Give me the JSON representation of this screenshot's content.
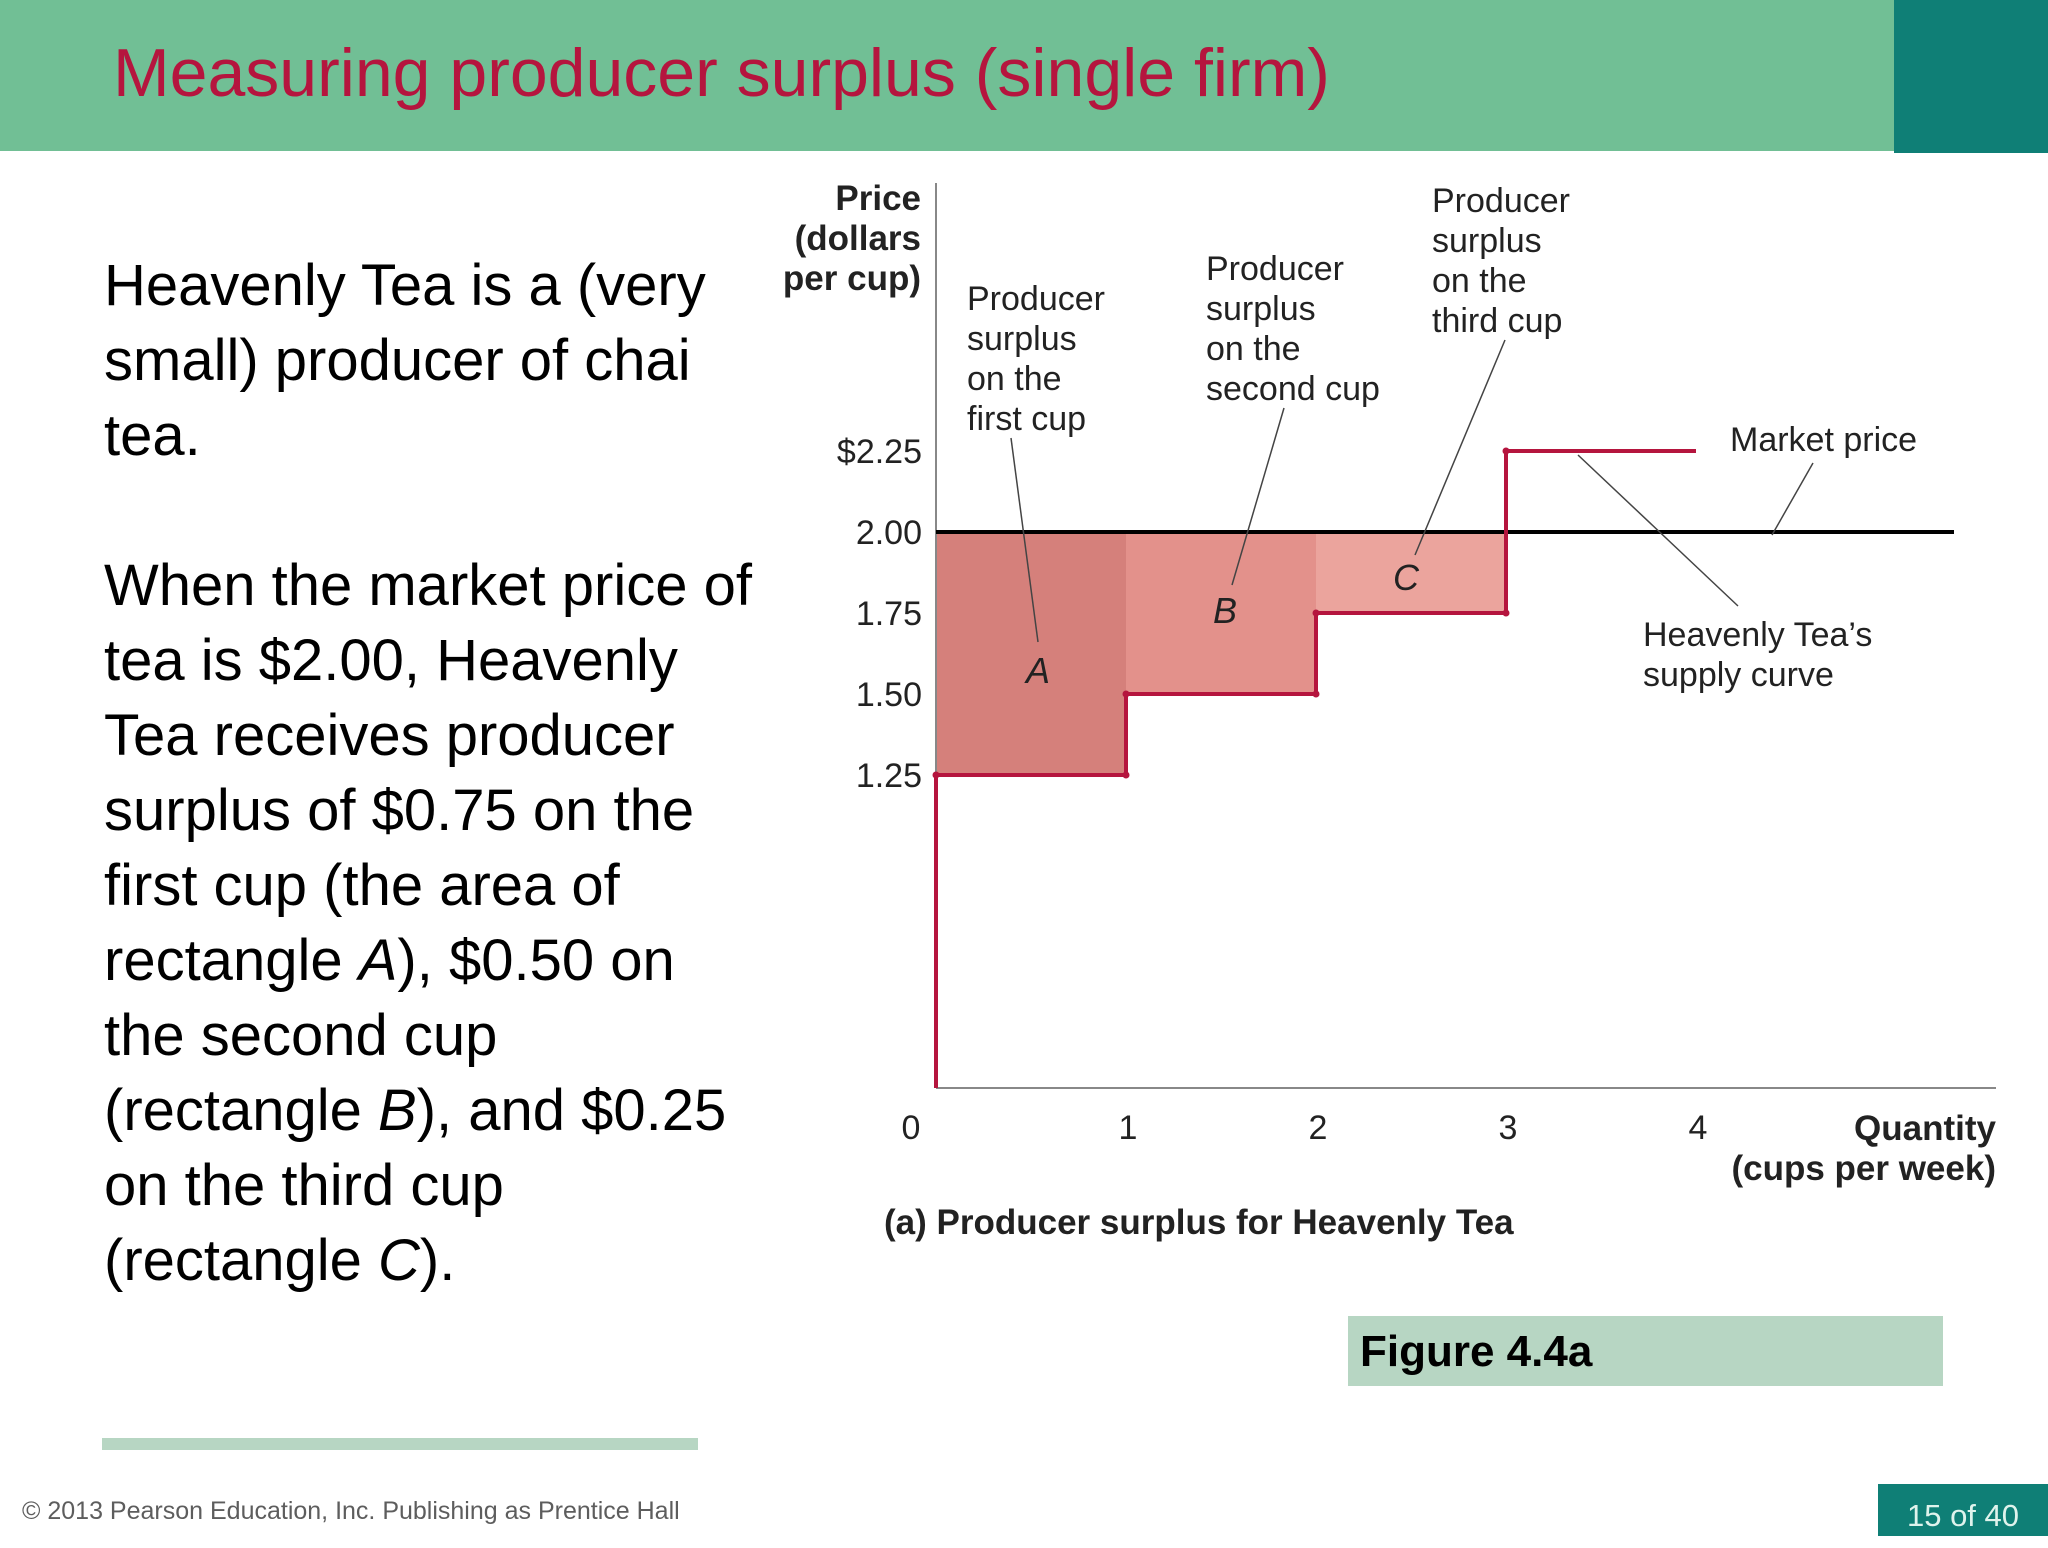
{
  "slide": {
    "title": "Measuring producer surplus (single firm)",
    "paragraph1": "Heavenly Tea is a (very small) producer of chai tea.",
    "paragraph2": {
      "t1": "When the market price of tea is $2.00, Heavenly Tea receives producer surplus of $0.75 on the first cup (the area of rectangle ",
      "i1": "A",
      "t2": "), $0.50 on the second cup (rectangle ",
      "i2": "B",
      "t3": "), and $0.25 on the third cup (rectangle ",
      "i3": "C",
      "t4": ")."
    },
    "copyright": "© 2013 Pearson Education, Inc. Publishing as Prentice Hall",
    "page_number": "15 of 40",
    "figure_label": "Figure 4.4a"
  },
  "colors": {
    "title_bar": "#71bf95",
    "accent_bar": "#0f7f76",
    "title_text": "#b5153e",
    "supply_curve": "#b5153e",
    "rect_A": "#d5807b",
    "rect_B": "#e3918b",
    "rect_C": "#eba49d",
    "label_bar": "#b7d6c3"
  },
  "chart_data": {
    "type": "step",
    "caption": "(a) Producer surplus for Heavenly Tea",
    "ylabel": [
      "Price",
      "(dollars",
      "per cup)"
    ],
    "xlabel": [
      "Quantity",
      "(cups per week)"
    ],
    "ytick_values": [
      1.25,
      1.5,
      1.75,
      2.0,
      2.25
    ],
    "ytick_labels": [
      "1.25",
      "1.50",
      "1.75",
      "2.00",
      "$2.25"
    ],
    "xtick_values": [
      0,
      1,
      2,
      3,
      4
    ],
    "xtick_labels": [
      "0",
      "1",
      "2",
      "3",
      "4"
    ],
    "xlim": [
      0,
      5.6
    ],
    "ylim": [
      0,
      2.25
    ],
    "market_price": 2.0,
    "supply_steps": [
      {
        "x_start": 0,
        "x_end": 1,
        "price": 1.25
      },
      {
        "x_start": 1,
        "x_end": 2,
        "price": 1.5
      },
      {
        "x_start": 2,
        "x_end": 3,
        "price": 1.75
      },
      {
        "x_start": 3,
        "x_end": 4,
        "price": 2.25
      }
    ],
    "surplus_rects": [
      {
        "label": "A",
        "x_start": 0,
        "x_end": 1,
        "y_low": 1.25,
        "y_high": 2.0,
        "value": 0.75
      },
      {
        "label": "B",
        "x_start": 1,
        "x_end": 2,
        "y_low": 1.5,
        "y_high": 2.0,
        "value": 0.5
      },
      {
        "label": "C",
        "x_start": 2,
        "x_end": 3,
        "y_low": 1.75,
        "y_high": 2.0,
        "value": 0.25
      }
    ],
    "annotations": {
      "first_cup": [
        "Producer",
        "surplus",
        "on the",
        "first cup"
      ],
      "second_cup": [
        "Producer",
        "surplus",
        "on the",
        "second cup"
      ],
      "third_cup": [
        "Producer",
        "surplus",
        "on the",
        "third cup"
      ],
      "market_price": "Market price",
      "supply_curve": [
        "Heavenly Tea’s",
        "supply curve"
      ]
    }
  }
}
